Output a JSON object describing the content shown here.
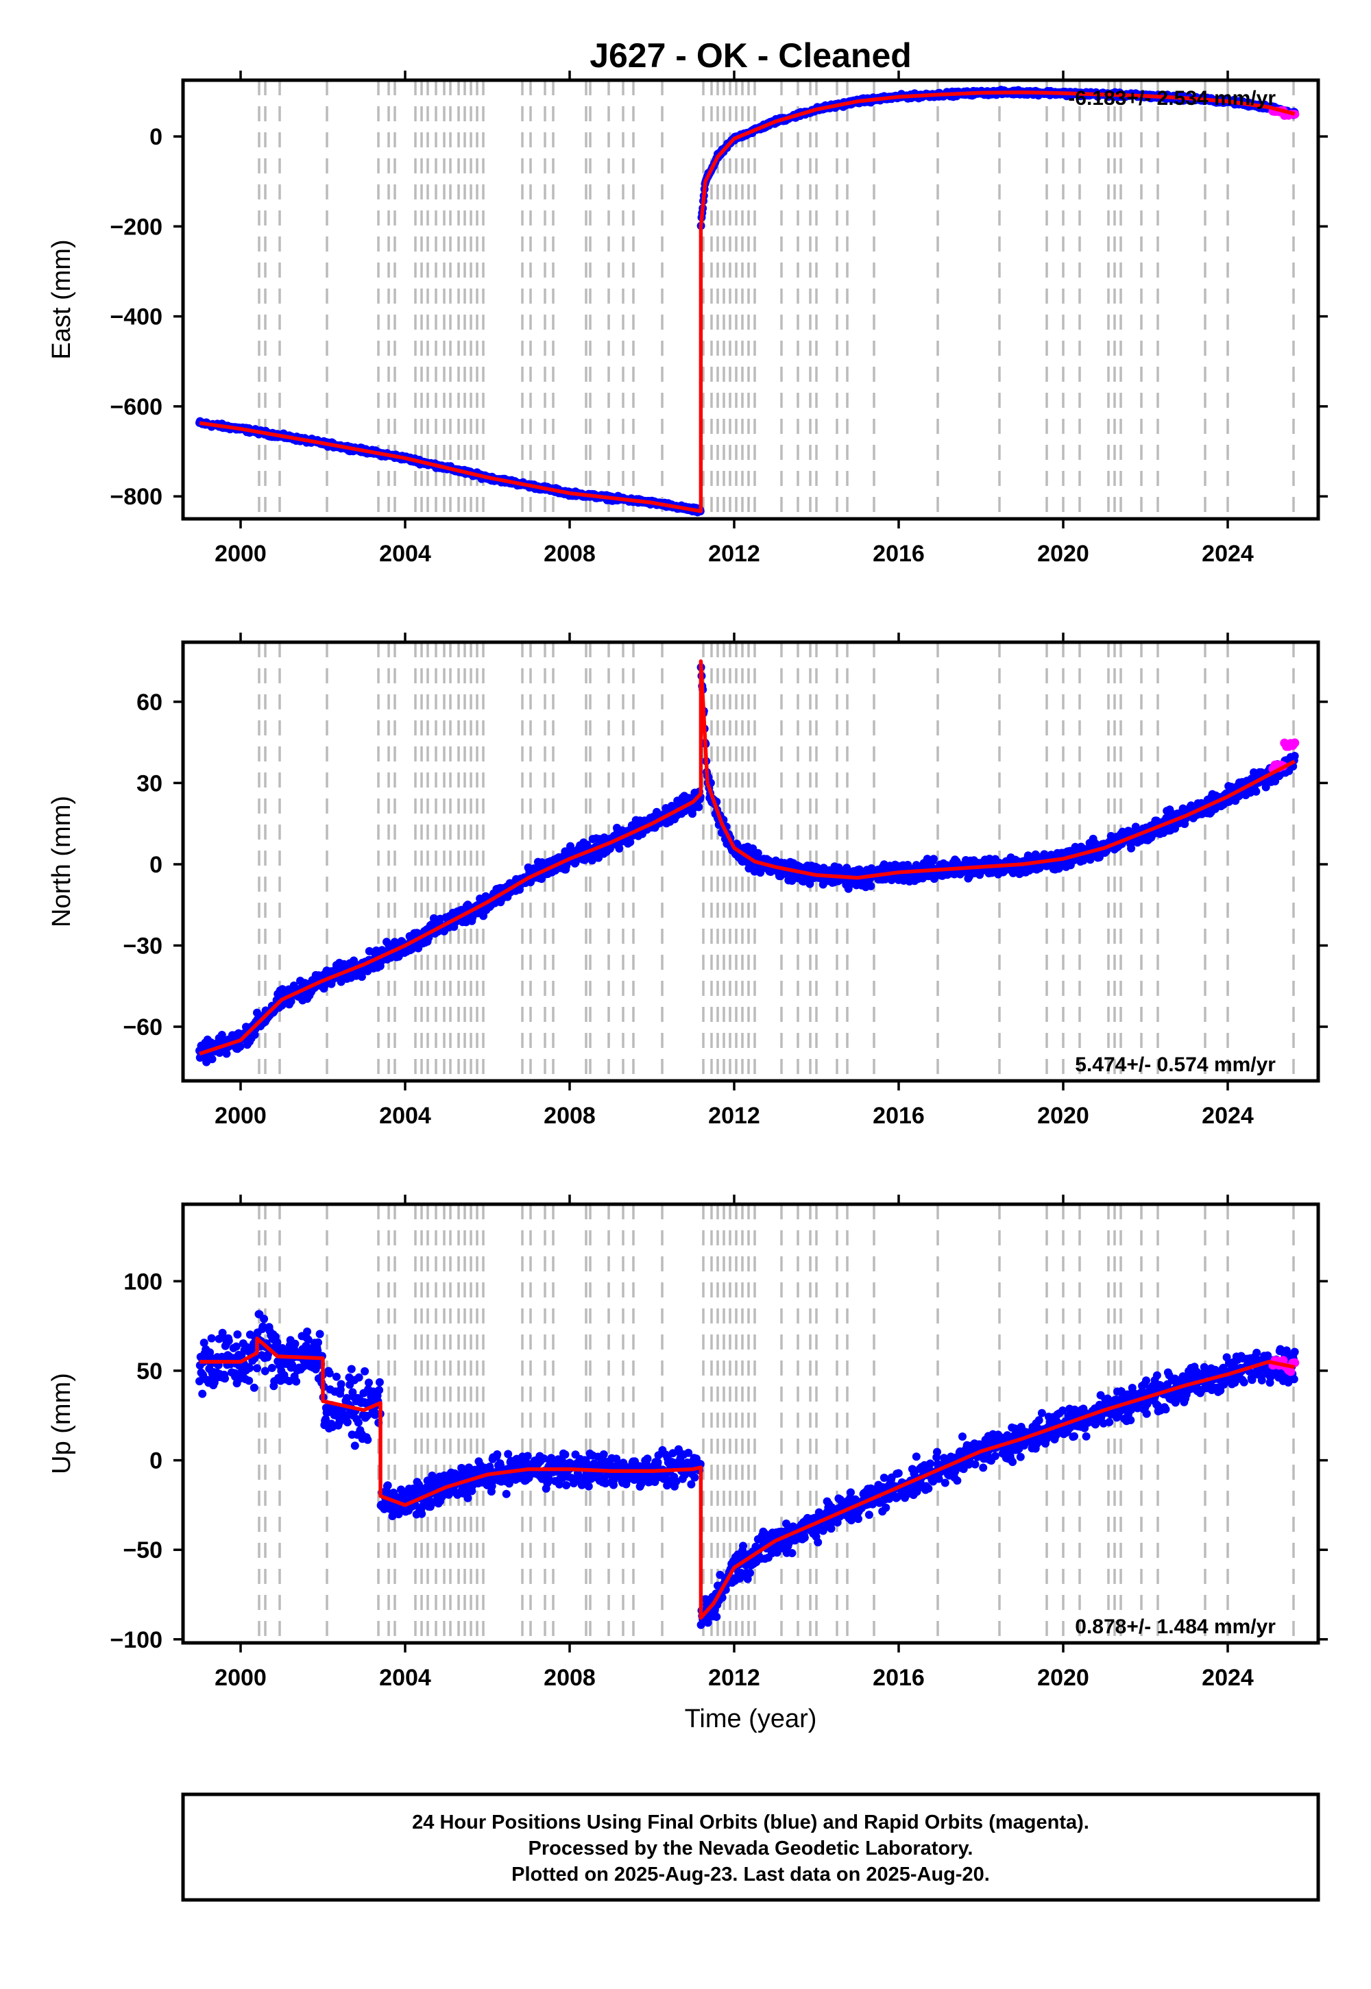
{
  "title": "J627  - OK - Cleaned",
  "xlabel": "Time (year)",
  "xticks": [
    "2000",
    "2004",
    "2008",
    "2012",
    "2016",
    "2020",
    "2024"
  ],
  "footer": [
    "24 Hour Positions Using Final Orbits (blue) and Rapid Orbits (magenta).",
    "Processed by the Nevada Geodetic Laboratory.",
    "Plotted on 2025-Aug-23. Last data on 2025-Aug-20."
  ],
  "colors": {
    "final": "#0000ff",
    "rapid": "#ff00ff",
    "model": "#ff0000",
    "events": "#bbbbbb"
  },
  "chart_data": [
    {
      "type": "scatter",
      "ylabel": "East (mm)",
      "rate_text": "-6.183+/- 2.534 mm/yr",
      "rate_position": "top-right",
      "xlim": [
        1998.6,
        2026.2
      ],
      "ylim": [
        -850,
        125
      ],
      "yticks": [
        "0",
        "−200",
        "−400",
        "−600",
        "−800"
      ],
      "ytick_values": [
        0,
        -200,
        -400,
        -600,
        -800
      ],
      "series": [
        {
          "role": "model",
          "x": [
            1999.0,
            2000.0,
            2002.0,
            2004.0,
            2006.0,
            2008.0,
            2010.0,
            2011.19,
            2011.19,
            2011.3,
            2011.6,
            2012.0,
            2013.0,
            2014.0,
            2015.0,
            2016.0,
            2017.0,
            2018.0,
            2019.0,
            2020.0,
            2021.0,
            2022.0,
            2023.0,
            2024.0,
            2025.0,
            2025.63
          ],
          "y": [
            -637,
            -650,
            -682,
            -715,
            -758,
            -793,
            -814,
            -833,
            -200,
            -100,
            -45,
            -5,
            33,
            60,
            78,
            88,
            93,
            97,
            98,
            96,
            93,
            90,
            85,
            78,
            65,
            50
          ]
        }
      ],
      "rapid_x": [
        2025.35,
        2025.63
      ],
      "rapid_y": [
        56,
        48
      ]
    },
    {
      "type": "scatter",
      "ylabel": "North (mm)",
      "rate_text": "5.474+/- 0.574 mm/yr",
      "rate_position": "bottom-right",
      "xlim": [
        1998.6,
        2026.2
      ],
      "ylim": [
        -80,
        82
      ],
      "yticks": [
        "60",
        "30",
        "0",
        "−30",
        "−60"
      ],
      "ytick_values": [
        60,
        30,
        0,
        -30,
        -60
      ],
      "series": [
        {
          "role": "model",
          "x": [
            1999.0,
            2000.0,
            2001.0,
            2002.0,
            2003.0,
            2004.0,
            2005.0,
            2006.0,
            2007.0,
            2008.0,
            2009.0,
            2010.0,
            2011.0,
            2011.19,
            2011.19,
            2011.35,
            2011.7,
            2012.0,
            2012.5,
            2013.0,
            2014.0,
            2015.0,
            2016.0,
            2017.0,
            2018.0,
            2019.0,
            2020.0,
            2021.0,
            2022.0,
            2023.0,
            2024.0,
            2025.0,
            2025.63
          ],
          "y": [
            -70,
            -65,
            -50,
            -43,
            -37,
            -30,
            -22,
            -14,
            -5,
            2,
            8,
            15,
            23,
            26,
            75,
            30,
            15,
            6,
            1,
            -1,
            -4,
            -5,
            -3,
            -2,
            -1,
            0,
            2,
            6,
            12,
            18,
            25,
            33,
            38
          ]
        }
      ],
      "rapid_x": [
        2025.35,
        2025.63
      ],
      "rapid_y": [
        36,
        44
      ]
    },
    {
      "type": "scatter",
      "ylabel": "Up (mm)",
      "rate_text": "0.878+/- 1.484 mm/yr",
      "rate_position": "bottom-right",
      "xlim": [
        1998.6,
        2026.2
      ],
      "ylim": [
        -102,
        143
      ],
      "yticks": [
        "100",
        "50",
        "0",
        "−50",
        "−100"
      ],
      "ytick_values": [
        100,
        50,
        0,
        -50,
        -100
      ],
      "series": [
        {
          "role": "model",
          "x": [
            1999.0,
            2000.0,
            2000.4,
            2000.4,
            2000.9,
            2002.0,
            2002.0,
            2003.0,
            2003.4,
            2003.4,
            2004.0,
            2005.0,
            2006.0,
            2007.0,
            2008.0,
            2009.0,
            2010.0,
            2011.0,
            2011.19,
            2011.19,
            2011.5,
            2012.0,
            2013.0,
            2014.0,
            2015.0,
            2016.0,
            2017.0,
            2018.0,
            2019.0,
            2020.0,
            2021.0,
            2022.0,
            2023.0,
            2024.0,
            2025.0,
            2025.63
          ],
          "y": [
            55,
            55,
            60,
            68,
            58,
            57,
            33,
            28,
            32,
            -20,
            -25,
            -15,
            -8,
            -5,
            -5,
            -6,
            -6,
            -5,
            -4,
            -88,
            -80,
            -60,
            -45,
            -35,
            -25,
            -15,
            -5,
            5,
            12,
            20,
            28,
            35,
            42,
            48,
            55,
            52
          ]
        }
      ],
      "rapid_x": [
        2025.35,
        2025.63
      ],
      "rapid_y": [
        55,
        52
      ]
    }
  ],
  "equipment_events_year": [
    2000.45,
    2000.6,
    2000.95,
    2002.1,
    2003.35,
    2003.6,
    2003.75,
    2004.25,
    2004.4,
    2004.55,
    2004.75,
    2004.95,
    2005.1,
    2005.3,
    2005.45,
    2005.6,
    2005.75,
    2005.9,
    2006.85,
    2007.05,
    2007.4,
    2007.6,
    2008.4,
    2008.5,
    2008.95,
    2009.3,
    2009.55,
    2010.25,
    2011.25,
    2011.45,
    2011.6,
    2011.75,
    2011.9,
    2012.05,
    2012.2,
    2012.35,
    2012.5,
    2013.15,
    2013.55,
    2013.85,
    2014.0,
    2014.5,
    2014.75,
    2015.4,
    2016.95,
    2018.45,
    2019.6,
    2020.0,
    2020.4,
    2021.1,
    2021.25,
    2021.4,
    2021.9,
    2022.3,
    2023.45,
    2024.0,
    2025.6
  ]
}
